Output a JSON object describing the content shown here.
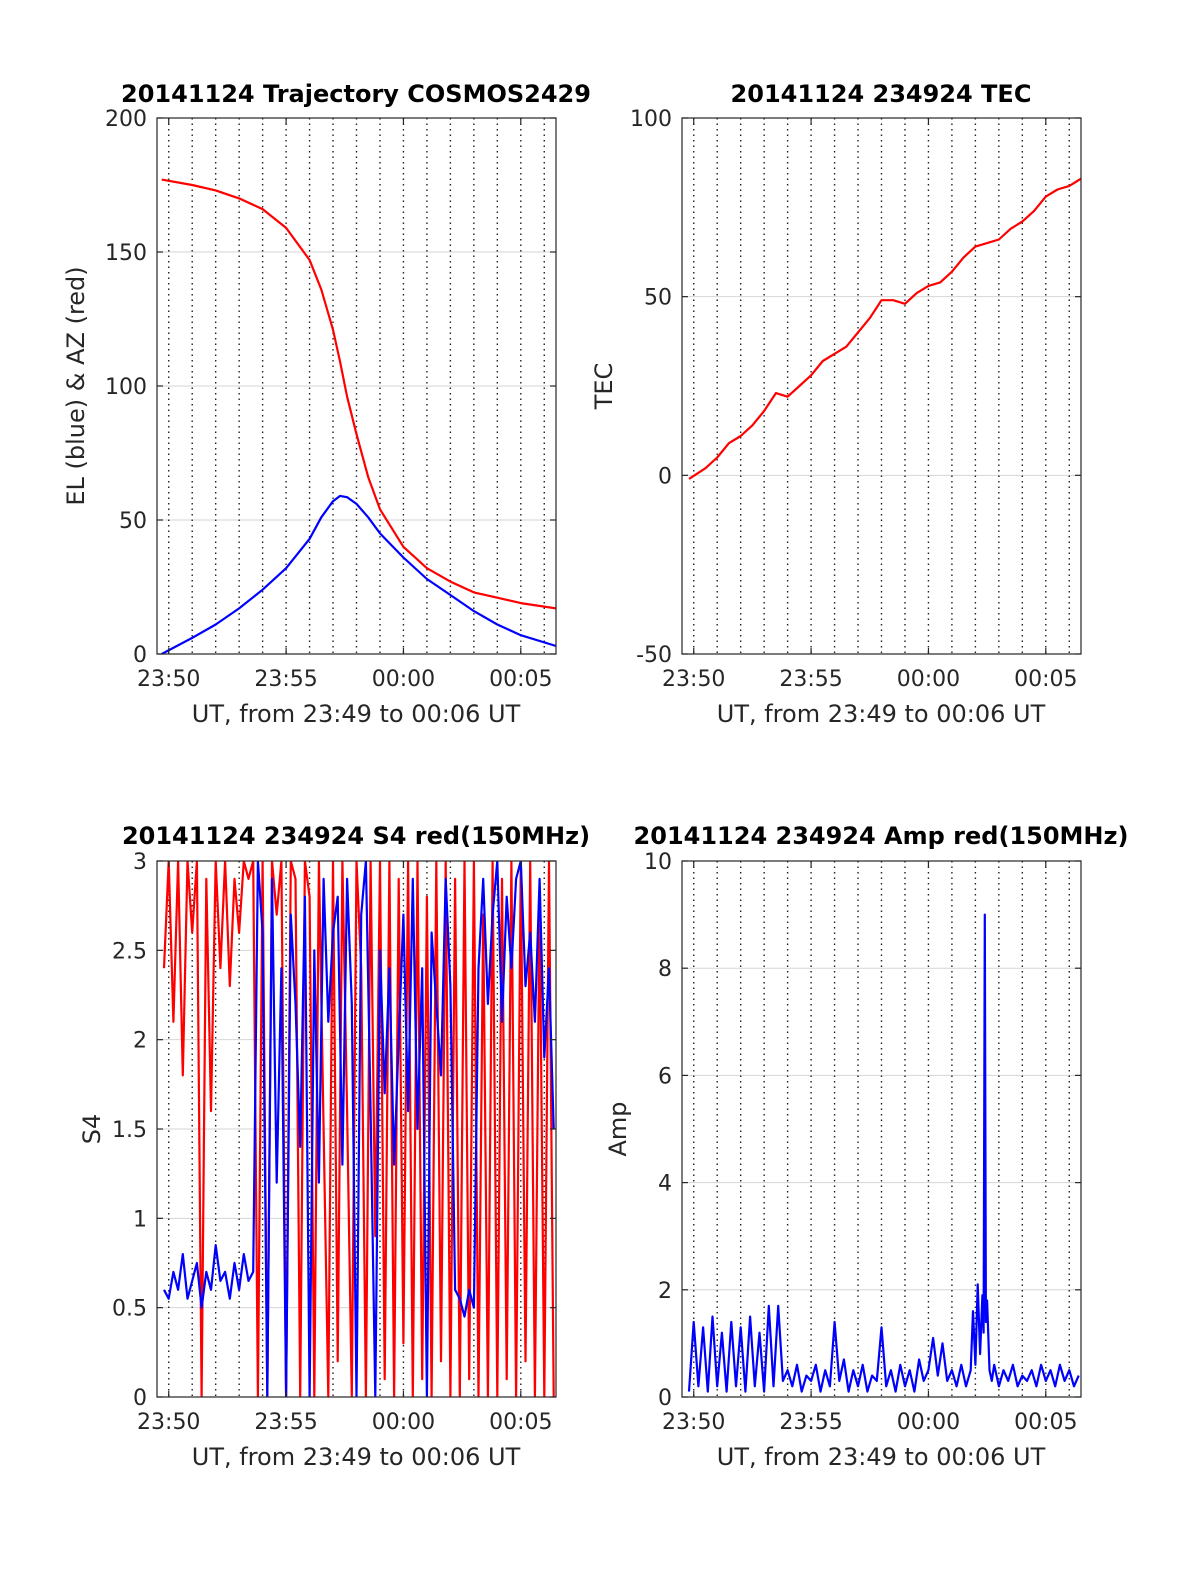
{
  "chart_data": [
    {
      "type": "line",
      "title": "20141124 Trajectory COSMOS2429",
      "xlabel": "UT, from 23:49 to 00:06 UT",
      "ylabel": "EL (blue) & AZ (red)",
      "xlim": [
        -0.5,
        16.5
      ],
      "ylim": [
        0,
        200
      ],
      "x_ticks": [
        {
          "value": 0,
          "label": "23:50"
        },
        {
          "value": 5,
          "label": "23:55"
        },
        {
          "value": 10,
          "label": "00:00"
        },
        {
          "value": 15,
          "label": "00:05"
        }
      ],
      "y_ticks": [
        {
          "value": 0,
          "label": "0"
        },
        {
          "value": 50,
          "label": "50"
        },
        {
          "value": 100,
          "label": "100"
        },
        {
          "value": 150,
          "label": "150"
        },
        {
          "value": 200,
          "label": "200"
        }
      ],
      "grid": "on",
      "series": [
        {
          "color": "#ff0000",
          "x": [
            -0.3,
            1,
            2,
            3,
            4,
            5,
            6,
            6.5,
            7,
            7.3,
            7.6,
            8,
            8.5,
            9,
            10,
            11,
            12,
            13,
            14,
            15,
            16.5
          ],
          "values": [
            177,
            175,
            173,
            170,
            166,
            159,
            147,
            136,
            121,
            109,
            96,
            82,
            66,
            54,
            40,
            32,
            27,
            23,
            21,
            19,
            17
          ]
        },
        {
          "color": "#0000ff",
          "x": [
            -0.3,
            1,
            2,
            3,
            4,
            5,
            6,
            6.5,
            7,
            7.3,
            7.6,
            8,
            8.5,
            9,
            10,
            11,
            12,
            13,
            14,
            15,
            16.5
          ],
          "values": [
            0,
            6,
            11,
            17,
            24,
            32,
            43,
            51,
            57,
            59,
            58.5,
            56,
            51,
            45,
            36,
            28,
            22,
            16,
            11,
            7,
            3
          ]
        }
      ]
    },
    {
      "type": "line",
      "title": "20141124 234924 TEC",
      "xlabel": "UT, from 23:49 to 00:06 UT",
      "ylabel": "TEC",
      "xlim": [
        -0.5,
        16.5
      ],
      "ylim": [
        -50,
        100
      ],
      "x_ticks": [
        {
          "value": 0,
          "label": "23:50"
        },
        {
          "value": 5,
          "label": "23:55"
        },
        {
          "value": 10,
          "label": "00:00"
        },
        {
          "value": 15,
          "label": "00:05"
        }
      ],
      "y_ticks": [
        {
          "value": -50,
          "label": "-50"
        },
        {
          "value": 0,
          "label": "0"
        },
        {
          "value": 50,
          "label": "50"
        },
        {
          "value": 100,
          "label": "100"
        }
      ],
      "grid": "on",
      "series": [
        {
          "color": "#ff0000",
          "x": [
            -0.2,
            0.5,
            1,
            1.5,
            2,
            2.5,
            3,
            3.5,
            4,
            4.5,
            5,
            5.5,
            6,
            6.5,
            7,
            7.5,
            8,
            8.5,
            9,
            9.5,
            10,
            10.5,
            11,
            11.5,
            12,
            12.5,
            13,
            13.5,
            14,
            14.5,
            15,
            15.5,
            16,
            16.5
          ],
          "values": [
            -1,
            2,
            5,
            9,
            11,
            14,
            18,
            23,
            22,
            25,
            28,
            32,
            34,
            36,
            40,
            44,
            49,
            49,
            48,
            51,
            53,
            54,
            57,
            61,
            64,
            65,
            66,
            69,
            71,
            74,
            78,
            80,
            81,
            83
          ]
        }
      ]
    },
    {
      "type": "line",
      "title": "20141124 234924 S4 red(150MHz)",
      "xlabel": "UT, from 23:49 to 00:06 UT",
      "ylabel": "S4",
      "xlim": [
        -0.5,
        16.5
      ],
      "ylim": [
        0,
        3
      ],
      "x_ticks": [
        {
          "value": 0,
          "label": "23:50"
        },
        {
          "value": 5,
          "label": "23:55"
        },
        {
          "value": 10,
          "label": "00:00"
        },
        {
          "value": 15,
          "label": "00:05"
        }
      ],
      "y_ticks": [
        {
          "value": 0,
          "label": "0"
        },
        {
          "value": 0.5,
          "label": "0.5"
        },
        {
          "value": 1,
          "label": "1"
        },
        {
          "value": 1.5,
          "label": "1.5"
        },
        {
          "value": 2,
          "label": "2"
        },
        {
          "value": 2.5,
          "label": "2.5"
        },
        {
          "value": 3,
          "label": "3"
        }
      ],
      "grid": "on",
      "series": [
        {
          "color": "#ff0000",
          "x": [
            -0.2,
            0,
            0.2,
            0.4,
            0.6,
            0.8,
            1,
            1.2,
            1.4,
            1.6,
            1.8,
            2,
            2.2,
            2.4,
            2.6,
            2.8,
            3,
            3.2,
            3.4,
            3.6,
            3.8,
            4,
            4.2,
            4.4,
            4.6,
            4.8,
            5,
            5.2,
            5.4,
            5.6,
            5.8,
            6,
            6.2,
            6.4,
            6.6,
            6.8,
            7,
            7.2,
            7.4,
            7.6,
            7.8,
            8,
            8.2,
            8.4,
            8.6,
            8.8,
            9,
            9.2,
            9.4,
            9.6,
            9.8,
            10,
            10.2,
            10.4,
            10.6,
            10.8,
            11,
            11.2,
            11.4,
            11.6,
            11.8,
            12,
            12.2,
            12.4,
            12.6,
            12.8,
            13,
            13.2,
            13.4,
            13.6,
            13.8,
            14,
            14.2,
            14.4,
            14.6,
            14.8,
            15,
            15.2,
            15.4,
            15.6,
            15.8,
            16,
            16.2,
            16.4
          ],
          "values": [
            2.4,
            3,
            2.1,
            3,
            1.8,
            3,
            2.6,
            3,
            0,
            2.9,
            1.6,
            3,
            2.4,
            3,
            2.3,
            2.9,
            2.6,
            3,
            2.9,
            3,
            0,
            3,
            0,
            3,
            2.7,
            3,
            0,
            3,
            2.9,
            0,
            3,
            2.8,
            0,
            3,
            1.5,
            0,
            3,
            0.2,
            3,
            1.6,
            0,
            3,
            2.4,
            0,
            3,
            0.9,
            3,
            0.1,
            3,
            0,
            2.9,
            0.3,
            3,
            0,
            3,
            0.1,
            2.8,
            0,
            3,
            0.2,
            3,
            0,
            2.9,
            0,
            3,
            0.1,
            3,
            0,
            2.7,
            0,
            3,
            0,
            2.9,
            0.1,
            3,
            0,
            3,
            0.2,
            3,
            0,
            2.8,
            0,
            3,
            0
          ]
        },
        {
          "color": "#0000ff",
          "x": [
            -0.2,
            0,
            0.2,
            0.4,
            0.6,
            0.8,
            1,
            1.2,
            1.4,
            1.6,
            1.8,
            2,
            2.2,
            2.4,
            2.6,
            2.8,
            3,
            3.2,
            3.4,
            3.6,
            3.8,
            4,
            4.2,
            4.4,
            4.6,
            4.8,
            5,
            5.2,
            5.4,
            5.6,
            5.8,
            6,
            6.2,
            6.4,
            6.6,
            6.8,
            7,
            7.2,
            7.4,
            7.6,
            7.8,
            8,
            8.2,
            8.4,
            8.6,
            8.8,
            9,
            9.2,
            9.4,
            9.6,
            9.8,
            10,
            10.2,
            10.4,
            10.6,
            10.8,
            11,
            11.2,
            11.4,
            11.6,
            11.8,
            12,
            12.2,
            12.4,
            12.6,
            12.8,
            13,
            13.2,
            13.4,
            13.6,
            13.8,
            14,
            14.2,
            14.4,
            14.6,
            14.8,
            15,
            15.2,
            15.4,
            15.6,
            15.8,
            16,
            16.2,
            16.4
          ],
          "values": [
            0.6,
            0.55,
            0.7,
            0.6,
            0.8,
            0.55,
            0.65,
            0.75,
            0.5,
            0.7,
            0.6,
            0.85,
            0.65,
            0.7,
            0.55,
            0.75,
            0.6,
            0.8,
            0.65,
            0.7,
            3,
            2.6,
            0,
            2.9,
            1.2,
            2.4,
            0,
            2.7,
            2.2,
            1.4,
            2.8,
            0,
            2.5,
            1.2,
            2.9,
            2.1,
            2.6,
            2.8,
            1.3,
            2.9,
            2.2,
            0,
            2.7,
            3,
            1.6,
            0,
            2.5,
            1.7,
            2.4,
            1.3,
            2,
            2.7,
            1.6,
            2.9,
            1.5,
            2.4,
            0,
            2.6,
            2.2,
            1.8,
            2.9,
            2.3,
            0.6,
            0.55,
            0.45,
            0.6,
            0.5,
            2.4,
            2.9,
            2.2,
            2.7,
            3,
            2.1,
            2.8,
            2.4,
            2.9,
            3,
            2.3,
            2.6,
            2.1,
            2.9,
            1.9,
            2.4,
            1.5
          ]
        }
      ]
    },
    {
      "type": "line",
      "title": "20141124 234924 Amp red(150MHz)",
      "xlabel": "UT, from 23:49 to 00:06 UT",
      "ylabel": "Amp",
      "xlim": [
        -0.5,
        16.5
      ],
      "ylim": [
        0,
        10
      ],
      "x_ticks": [
        {
          "value": 0,
          "label": "23:50"
        },
        {
          "value": 5,
          "label": "23:55"
        },
        {
          "value": 10,
          "label": "00:00"
        },
        {
          "value": 15,
          "label": "00:05"
        }
      ],
      "y_ticks": [
        {
          "value": 0,
          "label": "0"
        },
        {
          "value": 2,
          "label": "2"
        },
        {
          "value": 4,
          "label": "4"
        },
        {
          "value": 6,
          "label": "6"
        },
        {
          "value": 8,
          "label": "8"
        },
        {
          "value": 10,
          "label": "10"
        }
      ],
      "grid": "on",
      "series": [
        {
          "color": "#0000ff",
          "x": [
            -0.2,
            0,
            0.2,
            0.4,
            0.6,
            0.8,
            1,
            1.2,
            1.4,
            1.6,
            1.8,
            2,
            2.2,
            2.4,
            2.6,
            2.8,
            3,
            3.2,
            3.4,
            3.6,
            3.8,
            4,
            4.2,
            4.4,
            4.6,
            4.8,
            5,
            5.2,
            5.4,
            5.6,
            5.8,
            6,
            6.2,
            6.4,
            6.6,
            6.8,
            7,
            7.2,
            7.4,
            7.6,
            7.8,
            8,
            8.2,
            8.4,
            8.6,
            8.8,
            9,
            9.2,
            9.4,
            9.6,
            9.8,
            10,
            10.2,
            10.4,
            10.6,
            10.8,
            11,
            11.2,
            11.4,
            11.6,
            11.8,
            11.9,
            12.0,
            12.1,
            12.2,
            12.3,
            12.35,
            12.4,
            12.45,
            12.5,
            12.6,
            12.7,
            12.8,
            13,
            13.2,
            13.4,
            13.6,
            13.8,
            14,
            14.2,
            14.4,
            14.6,
            14.8,
            15,
            15.2,
            15.4,
            15.6,
            15.8,
            16,
            16.2,
            16.4
          ],
          "values": [
            0.1,
            1.4,
            0.2,
            1.3,
            0.1,
            1.5,
            0.2,
            1.2,
            0.1,
            1.4,
            0.2,
            1.3,
            0.1,
            1.5,
            0.2,
            1.2,
            0.1,
            1.7,
            0.2,
            1.7,
            0.3,
            0.5,
            0.2,
            0.6,
            0.1,
            0.4,
            0.3,
            0.6,
            0.1,
            0.5,
            0.2,
            1.4,
            0.3,
            0.7,
            0.1,
            0.5,
            0.2,
            0.6,
            0.1,
            0.4,
            0.3,
            1.3,
            0.2,
            0.5,
            0.1,
            0.6,
            0.2,
            0.5,
            0.1,
            0.7,
            0.3,
            0.5,
            1.1,
            0.4,
            1.0,
            0.3,
            0.5,
            0.2,
            0.6,
            0.2,
            0.5,
            1.6,
            0.6,
            2.1,
            0.8,
            1.9,
            1.2,
            9.0,
            1.4,
            1.8,
            0.5,
            0.3,
            0.6,
            0.2,
            0.5,
            0.3,
            0.6,
            0.2,
            0.4,
            0.3,
            0.5,
            0.2,
            0.6,
            0.3,
            0.5,
            0.2,
            0.6,
            0.3,
            0.5,
            0.2,
            0.4
          ]
        }
      ]
    }
  ]
}
